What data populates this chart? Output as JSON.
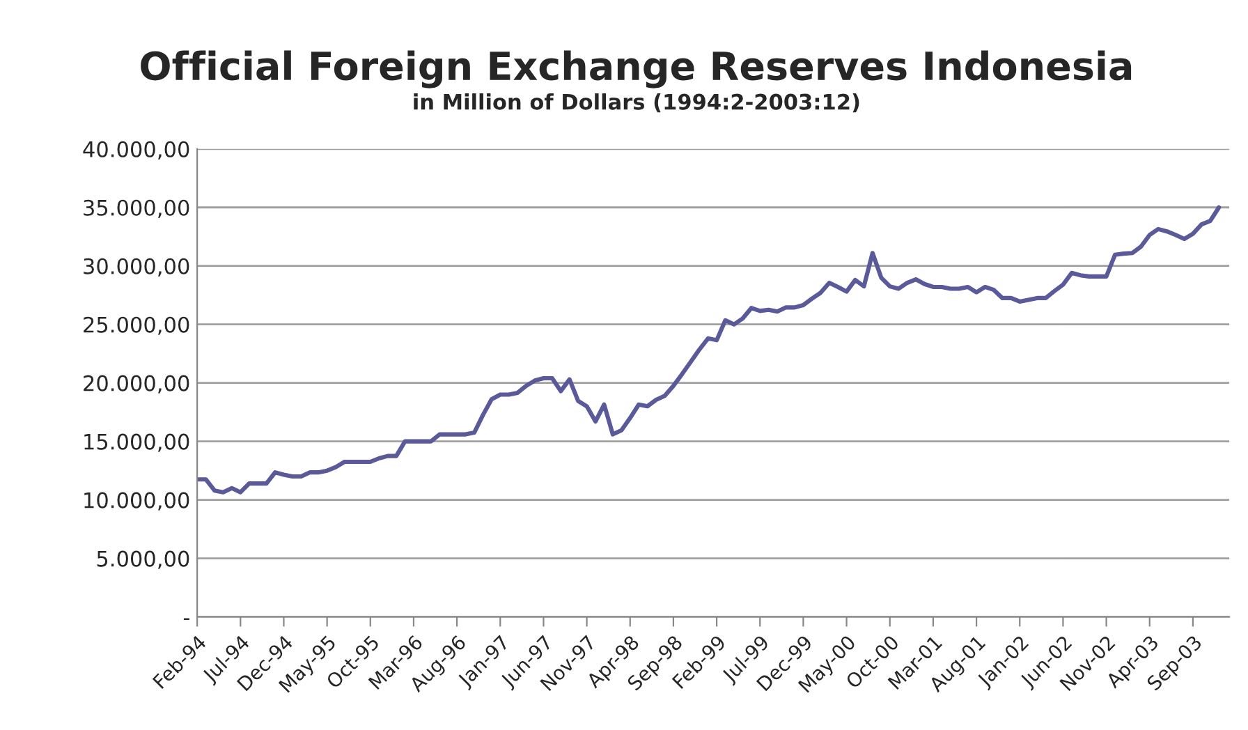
{
  "chart_data": {
    "type": "line",
    "title": "Official Foreign Exchange Reserves Indonesia",
    "subtitle": "in Million of Dollars (1994:2-2003:12)",
    "categories": [
      "Feb-94",
      null,
      null,
      null,
      null,
      "Jul-94",
      null,
      null,
      null,
      null,
      "Dec-94",
      null,
      null,
      null,
      null,
      "May-95",
      null,
      null,
      null,
      null,
      "Oct-95",
      null,
      null,
      null,
      null,
      "Mar-96",
      null,
      null,
      null,
      null,
      "Aug-96",
      null,
      null,
      null,
      null,
      "Jan-97",
      null,
      null,
      null,
      null,
      "Jun-97",
      null,
      null,
      null,
      null,
      "Nov-97",
      null,
      null,
      null,
      null,
      "Apr-98",
      null,
      null,
      null,
      null,
      "Sep-98",
      null,
      null,
      null,
      null,
      "Feb-99",
      null,
      null,
      null,
      null,
      "Jul-99",
      null,
      null,
      null,
      null,
      "Dec-99",
      null,
      null,
      null,
      null,
      "May-00",
      null,
      null,
      null,
      null,
      "Oct-00",
      null,
      null,
      null,
      null,
      "Mar-01",
      null,
      null,
      null,
      null,
      "Aug-01",
      null,
      null,
      null,
      null,
      "Jan-02",
      null,
      null,
      null,
      null,
      "Jun-02",
      null,
      null,
      null,
      null,
      "Nov-02",
      null,
      null,
      null,
      null,
      "Apr-03",
      null,
      null,
      null,
      null,
      "Sep-03",
      null,
      null,
      null
    ],
    "series": [
      {
        "color": "#5a5a9a",
        "values": [
          11750,
          11750,
          10800,
          10650,
          11000,
          10650,
          11400,
          11400,
          11400,
          12350,
          12150,
          12000,
          12000,
          12350,
          12350,
          12500,
          12800,
          13250,
          13250,
          13250,
          13250,
          13550,
          13750,
          13750,
          15000,
          15000,
          15000,
          15000,
          15600,
          15600,
          15600,
          15600,
          15750,
          17250,
          18600,
          19000,
          19000,
          19150,
          19750,
          20200,
          20400,
          20400,
          19300,
          20300,
          18450,
          18000,
          16700,
          18150,
          15600,
          15950,
          17000,
          18150,
          18000,
          18550,
          18900,
          19750,
          20750,
          21800,
          22850,
          23800,
          23650,
          25350,
          25000,
          25500,
          26400,
          26150,
          26250,
          26100,
          26450,
          26450,
          26650,
          27200,
          27700,
          28550,
          28200,
          27800,
          28800,
          28250,
          31100,
          29000,
          28250,
          28050,
          28550,
          28850,
          28450,
          28200,
          28200,
          28050,
          28050,
          28200,
          27750,
          28200,
          27950,
          27250,
          27250,
          26950,
          27100,
          27250,
          27250,
          27850,
          28400,
          29400,
          29200,
          29100,
          29100,
          29100,
          30950,
          31050,
          31100,
          31650,
          32650,
          33150,
          32950,
          32650,
          32300,
          32750,
          33550,
          33850,
          35000
        ]
      }
    ],
    "ylim": [
      0,
      40000
    ],
    "yticks": [
      {
        "value": 0,
        "label": "-"
      },
      {
        "value": 5000,
        "label": "5.000,00"
      },
      {
        "value": 10000,
        "label": "10.000,00"
      },
      {
        "value": 15000,
        "label": "15.000,00"
      },
      {
        "value": 20000,
        "label": "20.000,00"
      },
      {
        "value": 25000,
        "label": "25.000,00"
      },
      {
        "value": 30000,
        "label": "30.000,00"
      },
      {
        "value": 35000,
        "label": "35.000,00"
      },
      {
        "value": 40000,
        "label": "40.000,00"
      }
    ],
    "grid": "y",
    "legend": false,
    "marker": "none",
    "line_style": "solid"
  }
}
